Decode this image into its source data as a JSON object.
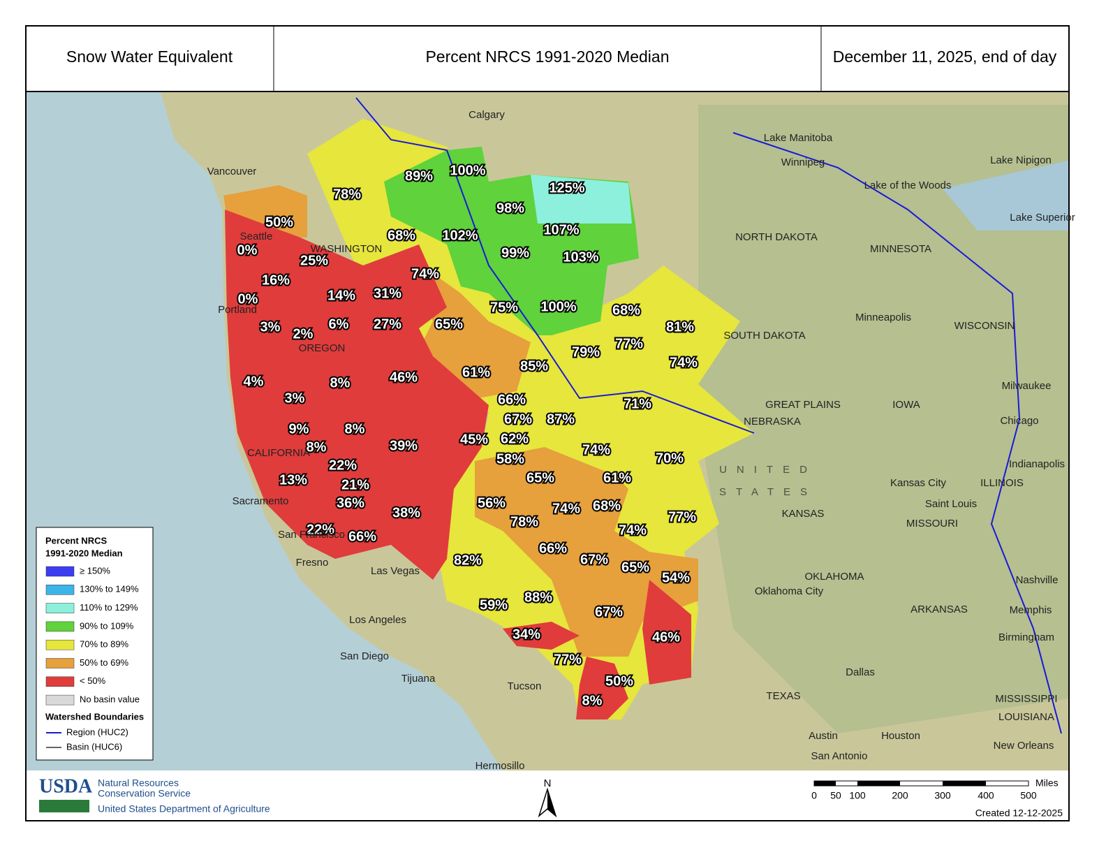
{
  "header": {
    "left": "Snow Water Equivalent",
    "center": "Percent NRCS 1991-2020 Median",
    "right": "December 11, 2025, end of day"
  },
  "basins": [
    "50%",
    "78%",
    "89%",
    "100%",
    "125%",
    "98%",
    "68%",
    "102%",
    "107%",
    "0%",
    "25%",
    "99%",
    "103%",
    "74%",
    "16%",
    "14%",
    "31%",
    "0%",
    "75%",
    "100%",
    "68%",
    "3%",
    "2%",
    "6%",
    "27%",
    "65%",
    "81%",
    "77%",
    "79%",
    "74%",
    "85%",
    "61%",
    "4%",
    "8%",
    "46%",
    "3%",
    "66%",
    "71%",
    "67%",
    "87%",
    "9%",
    "8%",
    "39%",
    "45%",
    "62%",
    "8%",
    "74%",
    "70%",
    "58%",
    "22%",
    "61%",
    "65%",
    "13%",
    "21%",
    "56%",
    "36%",
    "74%",
    "68%",
    "38%",
    "78%",
    "77%",
    "74%",
    "22%",
    "66%",
    "66%",
    "67%",
    "65%",
    "82%",
    "54%",
    "88%",
    "59%",
    "67%",
    "34%",
    "46%",
    "77%",
    "50%",
    "8%"
  ],
  "places": [
    "Calgary",
    "Vancouver",
    "Seattle",
    "Portland",
    "Winnipeg",
    "Lake Manitoba",
    "Lake of the Woods",
    "Lake Nipigon",
    "Lake Superior",
    "NORTH DAKOTA",
    "MINNESOTA",
    "Minneapolis",
    "WISCONSIN",
    "SOUTH DAKOTA",
    "IOWA",
    "Milwaukee",
    "Chicago",
    "NEBRASKA",
    "UNITED",
    "STATES",
    "KANSAS",
    "Kansas City",
    "ILLINOIS",
    "Indianapolis",
    "Saint Louis",
    "MISSOURI",
    "OKLAHOMA",
    "Oklahoma City",
    "Nashville",
    "Memphis",
    "ARKANSAS",
    "Birmingham",
    "MISSISSIPPI",
    "LOUISIANA",
    "Dallas",
    "TEXAS",
    "Austin",
    "Houston",
    "San Antonio",
    "New Orleans",
    "Los Angeles",
    "San Diego",
    "Tijuana",
    "Tucson",
    "Hermosillo",
    "Sacramento",
    "San Francisco",
    "Fresno",
    "Las Vegas",
    "WASHINGTON",
    "OREGON",
    "CALIFORNIA",
    "GREAT PLAINS"
  ],
  "legend": {
    "title": [
      "Percent NRCS",
      "1991-2020 Median"
    ],
    "items": [
      {
        "label": "≥ 150%",
        "color": "#3c3cf2"
      },
      {
        "label": "130% to 149%",
        "color": "#3cb4e6"
      },
      {
        "label": "110% to 129%",
        "color": "#8cf0dc"
      },
      {
        "label": "90% to 109%",
        "color": "#5fd23c"
      },
      {
        "label": "70% to 89%",
        "color": "#e6e63c"
      },
      {
        "label": "50% to 69%",
        "color": "#e6a03c"
      },
      {
        "label": "< 50%",
        "color": "#e03c3c"
      },
      {
        "label": "No basin value",
        "color": "#d9d9d9"
      }
    ],
    "boundaries_title": "Watershed Boundaries",
    "boundaries": [
      {
        "label": "Region (HUC2)",
        "color": "#1a1ad6"
      },
      {
        "label": "Basin (HUC6)",
        "color": "#666666"
      }
    ]
  },
  "footer": {
    "logo": "USDA",
    "agency": [
      "Natural Resources",
      "Conservation Service"
    ],
    "department": "United States Department of Agriculture",
    "north": "N",
    "scale_ticks": [
      "0",
      "50",
      "100",
      "200",
      "300",
      "400",
      "500"
    ],
    "scale_unit": "Miles",
    "created": "Created 12-12-2025"
  }
}
